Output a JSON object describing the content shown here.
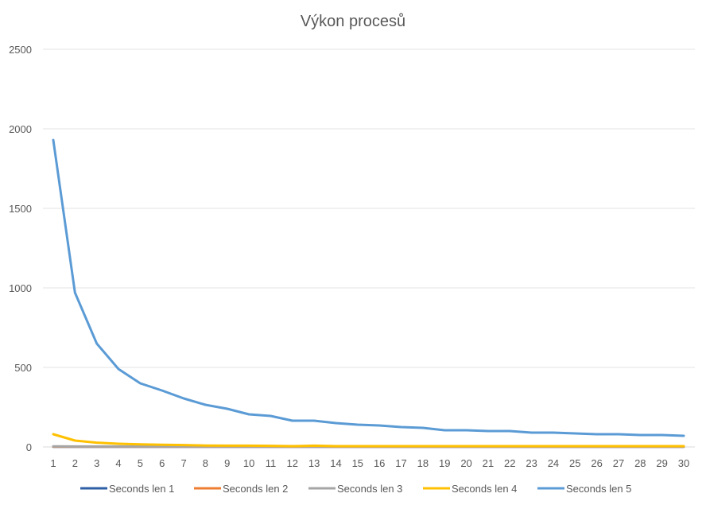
{
  "chart_data": {
    "type": "line",
    "title": "Výkon procesů",
    "xlabel": "",
    "ylabel": "",
    "x": [
      1,
      2,
      3,
      4,
      5,
      6,
      7,
      8,
      9,
      10,
      11,
      12,
      13,
      14,
      15,
      16,
      17,
      18,
      19,
      20,
      21,
      22,
      23,
      24,
      25,
      26,
      27,
      28,
      29,
      30
    ],
    "ylim": [
      0,
      2500
    ],
    "yticks": [
      0,
      500,
      1000,
      1500,
      2000,
      2500
    ],
    "grid": true,
    "legend_position": "bottom",
    "series": [
      {
        "name": "Seconds len 1",
        "color": "#2e5fa6",
        "values": [
          1,
          1,
          1,
          1,
          1,
          1,
          1,
          1,
          1,
          1,
          1,
          1,
          1,
          1,
          1,
          1,
          1,
          1,
          1,
          1,
          1,
          1,
          1,
          1,
          1,
          1,
          1,
          1,
          1,
          1
        ]
      },
      {
        "name": "Seconds len 2",
        "color": "#ed7d31",
        "values": [
          2,
          2,
          2,
          2,
          2,
          2,
          2,
          2,
          2,
          2,
          2,
          2,
          2,
          2,
          2,
          2,
          2,
          2,
          2,
          2,
          2,
          2,
          2,
          2,
          2,
          2,
          2,
          2,
          2,
          2
        ]
      },
      {
        "name": "Seconds len 3",
        "color": "#a5a5a5",
        "values": [
          4,
          3,
          3,
          3,
          3,
          3,
          3,
          3,
          3,
          3,
          3,
          3,
          3,
          3,
          3,
          3,
          3,
          3,
          3,
          3,
          3,
          3,
          3,
          3,
          3,
          3,
          3,
          3,
          3,
          3
        ]
      },
      {
        "name": "Seconds len 4",
        "color": "#ffc000",
        "values": [
          80,
          40,
          27,
          20,
          16,
          14,
          12,
          9,
          8,
          8,
          7,
          5,
          8,
          5,
          5,
          5,
          5,
          5,
          5,
          5,
          5,
          5,
          5,
          5,
          5,
          5,
          5,
          5,
          5,
          5
        ]
      },
      {
        "name": "Seconds len 5",
        "color": "#5b9bd5",
        "values": [
          1930,
          970,
          650,
          490,
          400,
          355,
          305,
          265,
          240,
          205,
          195,
          165,
          165,
          150,
          140,
          135,
          125,
          120,
          105,
          105,
          100,
          100,
          90,
          90,
          85,
          80,
          80,
          75,
          75,
          70
        ]
      }
    ]
  }
}
